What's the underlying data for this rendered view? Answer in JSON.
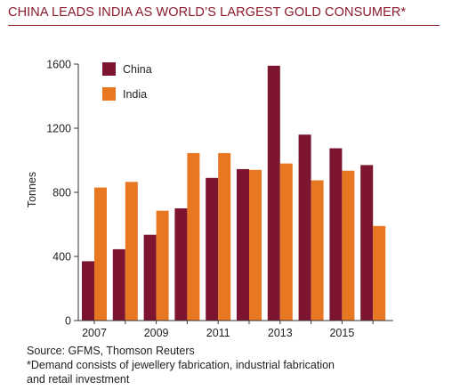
{
  "chart_data": {
    "type": "bar",
    "title": "CHINA LEADS INDIA AS WORLD’S LARGEST GOLD CONSUMER*",
    "ylabel": "Tonnes",
    "xlabel": "",
    "ylim": [
      0,
      1600
    ],
    "yticks": [
      0,
      400,
      800,
      1200,
      1600
    ],
    "categories": [
      "2007",
      "2008",
      "2009",
      "2010",
      "2011",
      "2012",
      "2013",
      "2014",
      "2015",
      "2016"
    ],
    "xtick_labels": [
      "2007",
      "2009",
      "2011",
      "2013",
      "2015"
    ],
    "series": [
      {
        "name": "China",
        "color": "#7d1530",
        "values": [
          370,
          445,
          535,
          700,
          890,
          945,
          1590,
          1160,
          1075,
          970
        ]
      },
      {
        "name": "India",
        "color": "#e87722",
        "values": [
          830,
          865,
          685,
          1045,
          1045,
          940,
          980,
          875,
          935,
          590
        ]
      }
    ],
    "legend": "top-left",
    "grid": false
  },
  "footer": {
    "source": "Source: GFMS, Thomson Reuters",
    "note_line1": "*Demand consists of jewellery fabrication, industrial fabrication",
    "note_line2": "and retail investment"
  }
}
